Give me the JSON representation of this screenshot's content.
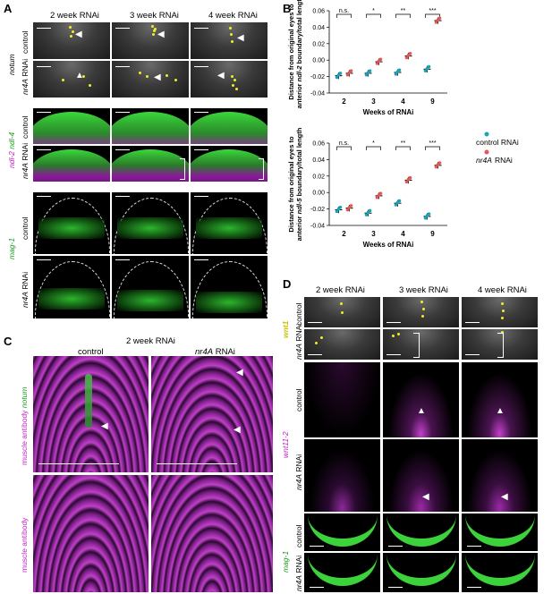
{
  "panels": {
    "A": "A",
    "B": "B",
    "C": "C",
    "D": "D"
  },
  "A": {
    "headers": [
      "2 week RNAi",
      "3 week RNAi",
      "4 week RNAi"
    ],
    "rows": [
      {
        "label": "control",
        "gene": "notum"
      },
      {
        "label": "nr4A RNAi"
      },
      {
        "label": "control",
        "gene": "ndl-2 ndl-4"
      },
      {
        "label": "nr4A RNAi"
      },
      {
        "label": "control",
        "gene": "mag-1"
      },
      {
        "label": "nr4A RNAi"
      }
    ],
    "gene_labels": {
      "notum": "notum",
      "ndl_a": "ndl-2",
      "ndl_b": "ndl-4",
      "mag": "mag-1"
    },
    "row_text": {
      "control": "control",
      "nr4a": "nr4A",
      "rnai": "RNAi"
    }
  },
  "B": {
    "legend": {
      "control": "control RNAi",
      "nr4a": "nr4A",
      "rnai": "RNAi"
    },
    "colors": {
      "control": "#1aa3b8",
      "nr4a": "#e0585a"
    },
    "chart_data": [
      {
        "type": "scatter",
        "ylabel_parts": [
          "Distance from original eyes to",
          "anterior ",
          "ndl-2",
          " boundary/total length"
        ],
        "xlabel": "Weeks of RNAi",
        "categories": [
          "2",
          "3",
          "4",
          "9"
        ],
        "ylim": [
          -0.04,
          0.06
        ],
        "yticks": [
          "-0.04",
          "-0.02",
          "0.00",
          "0.02",
          "0.04",
          "0.06"
        ],
        "sig": [
          "n.s.",
          "*",
          "**",
          "***"
        ],
        "series": [
          {
            "name": "control RNAi",
            "means": [
              -0.019,
              -0.016,
              -0.015,
              -0.011
            ]
          },
          {
            "name": "nr4A RNAi",
            "means": [
              -0.016,
              -0.002,
              0.005,
              0.048
            ]
          }
        ]
      },
      {
        "type": "scatter",
        "ylabel_parts": [
          "Distance from original eyes to",
          "anterior ",
          "ndl-5",
          " boundary/total length"
        ],
        "xlabel": "Weeks of RNAi",
        "categories": [
          "2",
          "3",
          "4",
          "9"
        ],
        "ylim": [
          -0.04,
          0.06
        ],
        "yticks": [
          "-0.04",
          "-0.02",
          "0.00",
          "0.02",
          "0.04",
          "0.06"
        ],
        "sig": [
          "n.s.",
          "*",
          "**",
          "***"
        ],
        "series": [
          {
            "name": "control RNAi",
            "means": [
              -0.021,
              -0.025,
              -0.013,
              -0.029
            ]
          },
          {
            "name": "nr4A RNAi",
            "means": [
              -0.019,
              -0.004,
              0.015,
              0.033
            ]
          }
        ]
      }
    ]
  },
  "C": {
    "title": "2 week RNAi",
    "col_control": "control",
    "col_nr4a": "nr4A",
    "col_rnai": "RNAi",
    "row1_a": "muscle antibody",
    "row1_b": "notum",
    "row2": "muscle antibody"
  },
  "D": {
    "headers": [
      "2 week RNAi",
      "3 week RNAi",
      "4 week RNAi"
    ],
    "gene_wnt1": "wnt1",
    "gene_wnt11": "wnt11-2",
    "gene_mag": "mag-1",
    "control": "control",
    "nr4a": "nr4A",
    "rnai": "RNAi"
  }
}
